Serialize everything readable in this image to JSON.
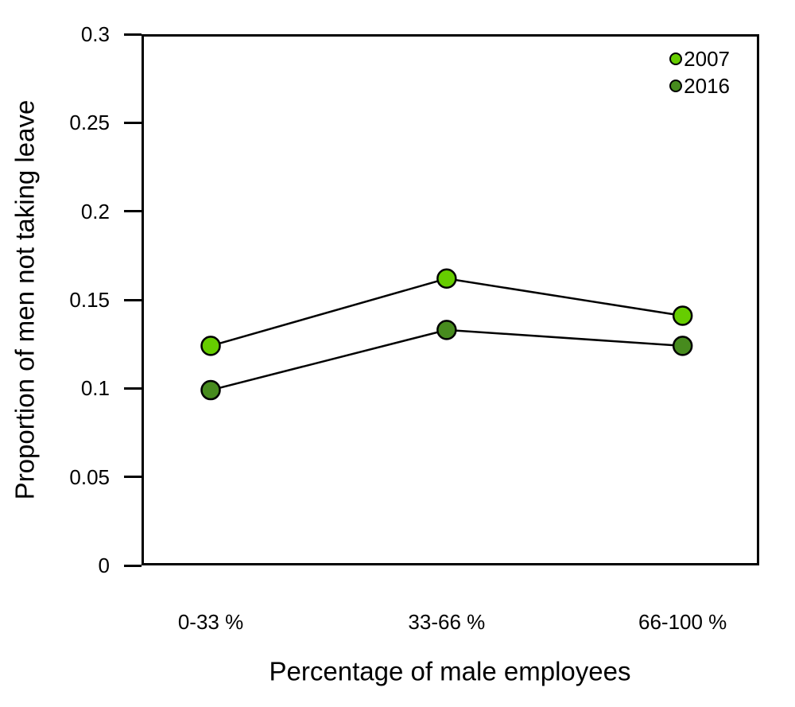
{
  "figure": {
    "background": "#FFFFFF",
    "text_color": "#000000"
  },
  "chart_data": {
    "type": "line",
    "title": "",
    "categories": [
      "0-33 %",
      "33-66 %",
      "66-100 %"
    ],
    "series": [
      {
        "name": "2007",
        "color": "#66CD00",
        "values": [
          0.124,
          0.162,
          0.141
        ]
      },
      {
        "name": "2016",
        "color": "#478B1E",
        "values": [
          0.099,
          0.133,
          0.124
        ]
      }
    ],
    "xlabel": "Percentage of male employees",
    "ylabel": "Proportion of men not taking leave",
    "ylim": [
      0,
      0.3
    ],
    "yticks": [
      0,
      0.05,
      0.1,
      0.15,
      0.2,
      0.25,
      0.3
    ],
    "ytick_labels": [
      "0",
      "0.05",
      "0.1",
      "0.15",
      "0.2",
      "0.25",
      "0.3"
    ],
    "grid": false,
    "line_color": "#000000",
    "marker": "circle-filled",
    "legend": {
      "position": "top-right",
      "entries": [
        "2007",
        "2016"
      ]
    }
  }
}
